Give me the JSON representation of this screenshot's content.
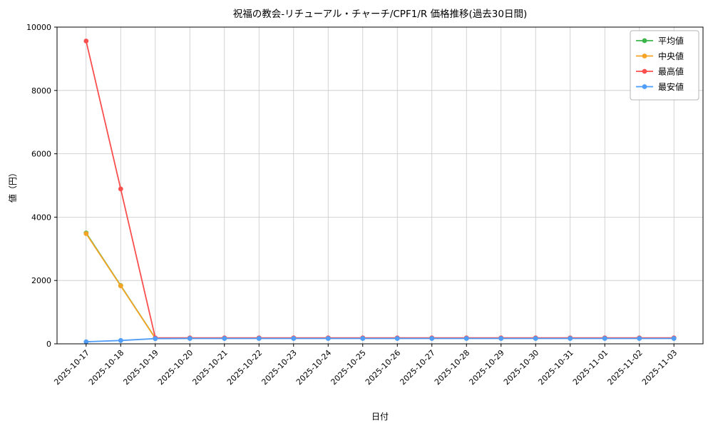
{
  "chart_data": {
    "type": "line",
    "title": "祝福の教会-リチューアル・チャーチ/CPF1/R 価格推移(過去30日間)",
    "xlabel": "日付",
    "ylabel": "値（円）",
    "ylim": [
      0,
      10000
    ],
    "yticks": [
      0,
      2000,
      4000,
      6000,
      8000,
      10000
    ],
    "grid": true,
    "legend_position": "upper right",
    "categories": [
      "2025-10-17",
      "2025-10-18",
      "2025-10-19",
      "2025-10-20",
      "2025-10-21",
      "2025-10-22",
      "2025-10-23",
      "2025-10-24",
      "2025-10-25",
      "2025-10-26",
      "2025-10-27",
      "2025-10-28",
      "2025-10-29",
      "2025-10-30",
      "2025-10-31",
      "2025-11-01",
      "2025-11-02",
      "2025-11-03"
    ],
    "series": [
      {
        "name": "平均値",
        "color": "#3cb44b",
        "values": [
          3500,
          1840,
          180,
          180,
          180,
          180,
          180,
          180,
          180,
          180,
          180,
          180,
          180,
          180,
          180,
          180,
          180,
          180
        ]
      },
      {
        "name": "中央値",
        "color": "#f5a425",
        "values": [
          3480,
          1830,
          175,
          175,
          175,
          175,
          175,
          175,
          175,
          175,
          175,
          175,
          175,
          175,
          175,
          175,
          175,
          175
        ]
      },
      {
        "name": "最高値",
        "color": "#f94f4f",
        "values": [
          9560,
          4890,
          190,
          190,
          190,
          190,
          190,
          190,
          190,
          190,
          190,
          190,
          190,
          190,
          190,
          190,
          190,
          190
        ]
      },
      {
        "name": "最安値",
        "color": "#4f9df7",
        "values": [
          65,
          105,
          165,
          170,
          170,
          170,
          170,
          170,
          170,
          170,
          170,
          170,
          170,
          170,
          170,
          170,
          170,
          170
        ]
      }
    ],
    "style": {
      "grid_color": "#c8c8c8",
      "spine_color": "#000000",
      "background": "#ffffff",
      "legend_border": "#b4b4b4"
    }
  }
}
